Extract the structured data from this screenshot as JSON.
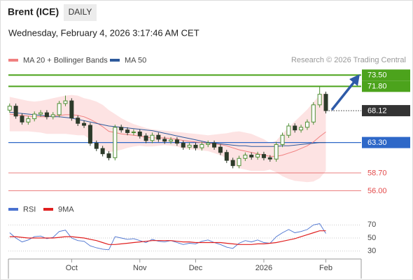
{
  "header": {
    "title": "Brent (ICE)",
    "timeframe": "DAILY",
    "date": "Wednesday, February 4, 2026 3:17:46 AM CET",
    "source": "Research © 2026 Trading Central"
  },
  "chart_data": [
    {
      "type": "candlestick",
      "up_color": "#4f8f35",
      "down_color": "#2d3b2a",
      "xlim": [
        -0.2,
        56.7
      ],
      "xticks": [
        {
          "value": 10,
          "label": "Oct"
        },
        {
          "value": 21,
          "label": "Nov"
        },
        {
          "value": 30,
          "label": "Dec"
        },
        {
          "value": 41,
          "label": "2026"
        },
        {
          "value": 51,
          "label": "Feb"
        }
      ],
      "ylim": [
        55,
        74.8
      ],
      "open": [
        68.2,
        68.8,
        67.3,
        66.4,
        66.9,
        67.6,
        67.8,
        67.2,
        67.5,
        69.2,
        69.6,
        67.0,
        66.2,
        65.9,
        63.2,
        62.4,
        61.6,
        61.0,
        65.6,
        65.2,
        64.8,
        64.9,
        64.3,
        63.6,
        64.4,
        63.8,
        63.5,
        63.7,
        63.2,
        62.6,
        62.9,
        62.5,
        63.0,
        63.2,
        62.6,
        61.8,
        60.6,
        59.8,
        60.9,
        61.4,
        61.1,
        61.5,
        61.0,
        60.8,
        63.0,
        64.4,
        65.8,
        65.2,
        65.6,
        66.4,
        69.0,
        70.6
      ],
      "high": [
        69.2,
        69.2,
        67.7,
        67.3,
        68.0,
        68.2,
        68.2,
        67.9,
        69.6,
        70.4,
        70.0,
        67.4,
        66.6,
        66.3,
        63.6,
        62.8,
        62.0,
        66.0,
        66.0,
        65.6,
        65.3,
        65.3,
        64.7,
        64.8,
        64.8,
        64.2,
        64.1,
        64.1,
        63.6,
        63.3,
        63.3,
        63.4,
        63.6,
        63.6,
        63.0,
        62.2,
        61.0,
        61.3,
        61.8,
        61.8,
        61.9,
        61.9,
        61.4,
        63.4,
        64.8,
        66.2,
        66.2,
        66.0,
        66.8,
        69.4,
        71.8,
        71.0
      ],
      "low": [
        67.8,
        66.9,
        66.0,
        66.0,
        66.5,
        67.2,
        66.8,
        66.8,
        67.1,
        68.8,
        66.6,
        65.8,
        65.5,
        62.8,
        62.0,
        61.2,
        60.6,
        60.6,
        64.8,
        64.4,
        64.4,
        63.9,
        63.2,
        63.2,
        63.4,
        63.1,
        63.1,
        62.8,
        62.2,
        62.2,
        62.1,
        62.1,
        62.6,
        62.2,
        61.4,
        60.2,
        59.4,
        59.4,
        60.5,
        60.7,
        60.7,
        60.6,
        60.4,
        60.4,
        62.6,
        64.0,
        64.8,
        64.8,
        65.2,
        66.0,
        68.6,
        67.7
      ],
      "close": [
        68.8,
        67.3,
        66.4,
        66.9,
        67.6,
        67.8,
        67.2,
        67.5,
        69.2,
        69.6,
        67.0,
        66.2,
        65.9,
        63.2,
        62.4,
        61.6,
        61.0,
        65.6,
        65.2,
        64.8,
        64.9,
        64.3,
        63.6,
        64.4,
        63.8,
        63.5,
        63.7,
        63.2,
        62.6,
        62.9,
        62.5,
        63.0,
        63.2,
        62.6,
        61.8,
        60.6,
        59.8,
        60.9,
        61.4,
        61.1,
        61.5,
        61.0,
        60.8,
        63.0,
        64.4,
        65.8,
        65.2,
        65.6,
        66.4,
        69.0,
        70.6,
        68.12
      ],
      "overlays": [
        {
          "name": "MA 20 + Bollinger Bands",
          "color": "#f08080",
          "band_color": "#fde3e3",
          "values": [
            67.6,
            67.5,
            67.4,
            67.3,
            67.2,
            67.2,
            67.2,
            67.3,
            67.4,
            67.5,
            67.5,
            67.4,
            67.2,
            66.8,
            66.3,
            65.7,
            65.0,
            64.8,
            64.6,
            64.5,
            64.4,
            64.3,
            64.1,
            64.0,
            64.0,
            64.0,
            63.9,
            63.8,
            63.6,
            63.5,
            63.4,
            63.3,
            63.2,
            63.1,
            63.0,
            62.8,
            62.5,
            62.2,
            62.0,
            61.8,
            61.6,
            61.4,
            61.2,
            61.2,
            61.4,
            61.7,
            62.0,
            62.4,
            62.8,
            63.4,
            64.2,
            64.9
          ],
          "upper": [
            70.2,
            70.0,
            69.8,
            69.6,
            69.5,
            69.6,
            69.8,
            70.0,
            70.2,
            70.4,
            70.5,
            70.4,
            70.0,
            69.8,
            69.5,
            69.0,
            68.2,
            67.6,
            67.0,
            66.5,
            66.1,
            65.8,
            65.5,
            65.3,
            65.2,
            65.1,
            65.0,
            64.9,
            64.8,
            64.7,
            64.6,
            64.5,
            64.4,
            64.5,
            64.6,
            64.7,
            64.9,
            65.0,
            64.8,
            64.6,
            64.2,
            63.8,
            63.2,
            63.6,
            64.6,
            65.6,
            66.5,
            67.4,
            68.3,
            69.4,
            70.5,
            70.8
          ],
          "lower": [
            65.0,
            65.0,
            65.0,
            65.0,
            64.9,
            64.8,
            64.6,
            64.6,
            64.6,
            64.6,
            64.5,
            64.4,
            64.4,
            63.8,
            63.1,
            62.4,
            61.8,
            62.0,
            62.2,
            62.5,
            62.7,
            62.8,
            62.7,
            62.7,
            62.8,
            62.9,
            62.8,
            62.7,
            62.4,
            62.3,
            62.2,
            62.1,
            62.0,
            61.7,
            61.4,
            60.9,
            60.1,
            59.4,
            59.2,
            59.0,
            59.0,
            59.0,
            59.2,
            58.8,
            58.2,
            57.8,
            57.5,
            57.4,
            57.3,
            57.4,
            57.9,
            59.0
          ]
        },
        {
          "name": "MA 50",
          "color": "#2e5a9c",
          "values": [
            67.9,
            67.8,
            67.7,
            67.6,
            67.5,
            67.4,
            67.3,
            67.2,
            67.2,
            67.1,
            67.0,
            66.8,
            66.6,
            66.4,
            66.2,
            66.0,
            65.8,
            65.7,
            65.6,
            65.5,
            65.4,
            65.3,
            65.2,
            65.1,
            64.9,
            64.7,
            64.5,
            64.3,
            64.1,
            63.9,
            63.7,
            63.5,
            63.3,
            63.2,
            63.1,
            63.0,
            62.9,
            62.8,
            62.8,
            62.7,
            62.7,
            62.7,
            62.7,
            62.7,
            62.8,
            62.8,
            62.9,
            63.0,
            63.1,
            63.2,
            63.3,
            63.3
          ]
        }
      ],
      "levels": [
        {
          "value": 73.5,
          "label": "73.50",
          "color": "#4ca31c",
          "line": "solid",
          "label_box": true
        },
        {
          "value": 71.8,
          "label": "71.80",
          "color": "#4ca31c",
          "line": "solid",
          "label_box": true
        },
        {
          "value": 68.12,
          "label": "68.12",
          "color": "#333333",
          "line": "dotted",
          "label_box": true
        },
        {
          "value": 63.3,
          "label": "63.30",
          "color": "#2e68c8",
          "line": "solid",
          "label_box": true
        },
        {
          "value": 58.7,
          "label": "58.70",
          "color": "#e34a4a",
          "line": "solid",
          "label_box": false
        },
        {
          "value": 56.0,
          "label": "56.00",
          "color": "#e34a4a",
          "line": "solid",
          "label_box": false
        }
      ]
    },
    {
      "type": "line",
      "xlim": [
        -0.2,
        56.7
      ],
      "ylim": [
        20,
        80
      ],
      "yticks": [
        30,
        50,
        70
      ],
      "series": [
        {
          "name": "RSI",
          "color": "#4a72d0",
          "values": [
            58,
            50,
            44,
            47,
            52,
            53,
            49,
            51,
            60,
            62,
            50,
            46,
            45,
            38,
            35,
            33,
            32,
            52,
            50,
            48,
            49,
            46,
            43,
            48,
            45,
            44,
            46,
            43,
            40,
            42,
            41,
            45,
            47,
            43,
            40,
            36,
            34,
            42,
            46,
            44,
            47,
            43,
            42,
            52,
            58,
            63,
            58,
            60,
            63,
            70,
            72,
            57
          ]
        },
        {
          "name": "9MA",
          "color": "#e02020",
          "values": [
            52,
            52,
            51,
            50,
            50,
            50,
            50,
            50,
            51,
            52,
            52,
            51,
            50,
            48,
            46,
            43,
            40,
            40,
            41,
            42,
            43,
            44,
            45,
            46,
            46,
            46,
            46,
            45,
            44,
            44,
            43,
            43,
            43,
            43,
            43,
            42,
            41,
            40,
            40,
            40,
            41,
            41,
            42,
            43,
            45,
            47,
            49,
            52,
            55,
            58,
            61,
            61
          ]
        }
      ]
    }
  ]
}
